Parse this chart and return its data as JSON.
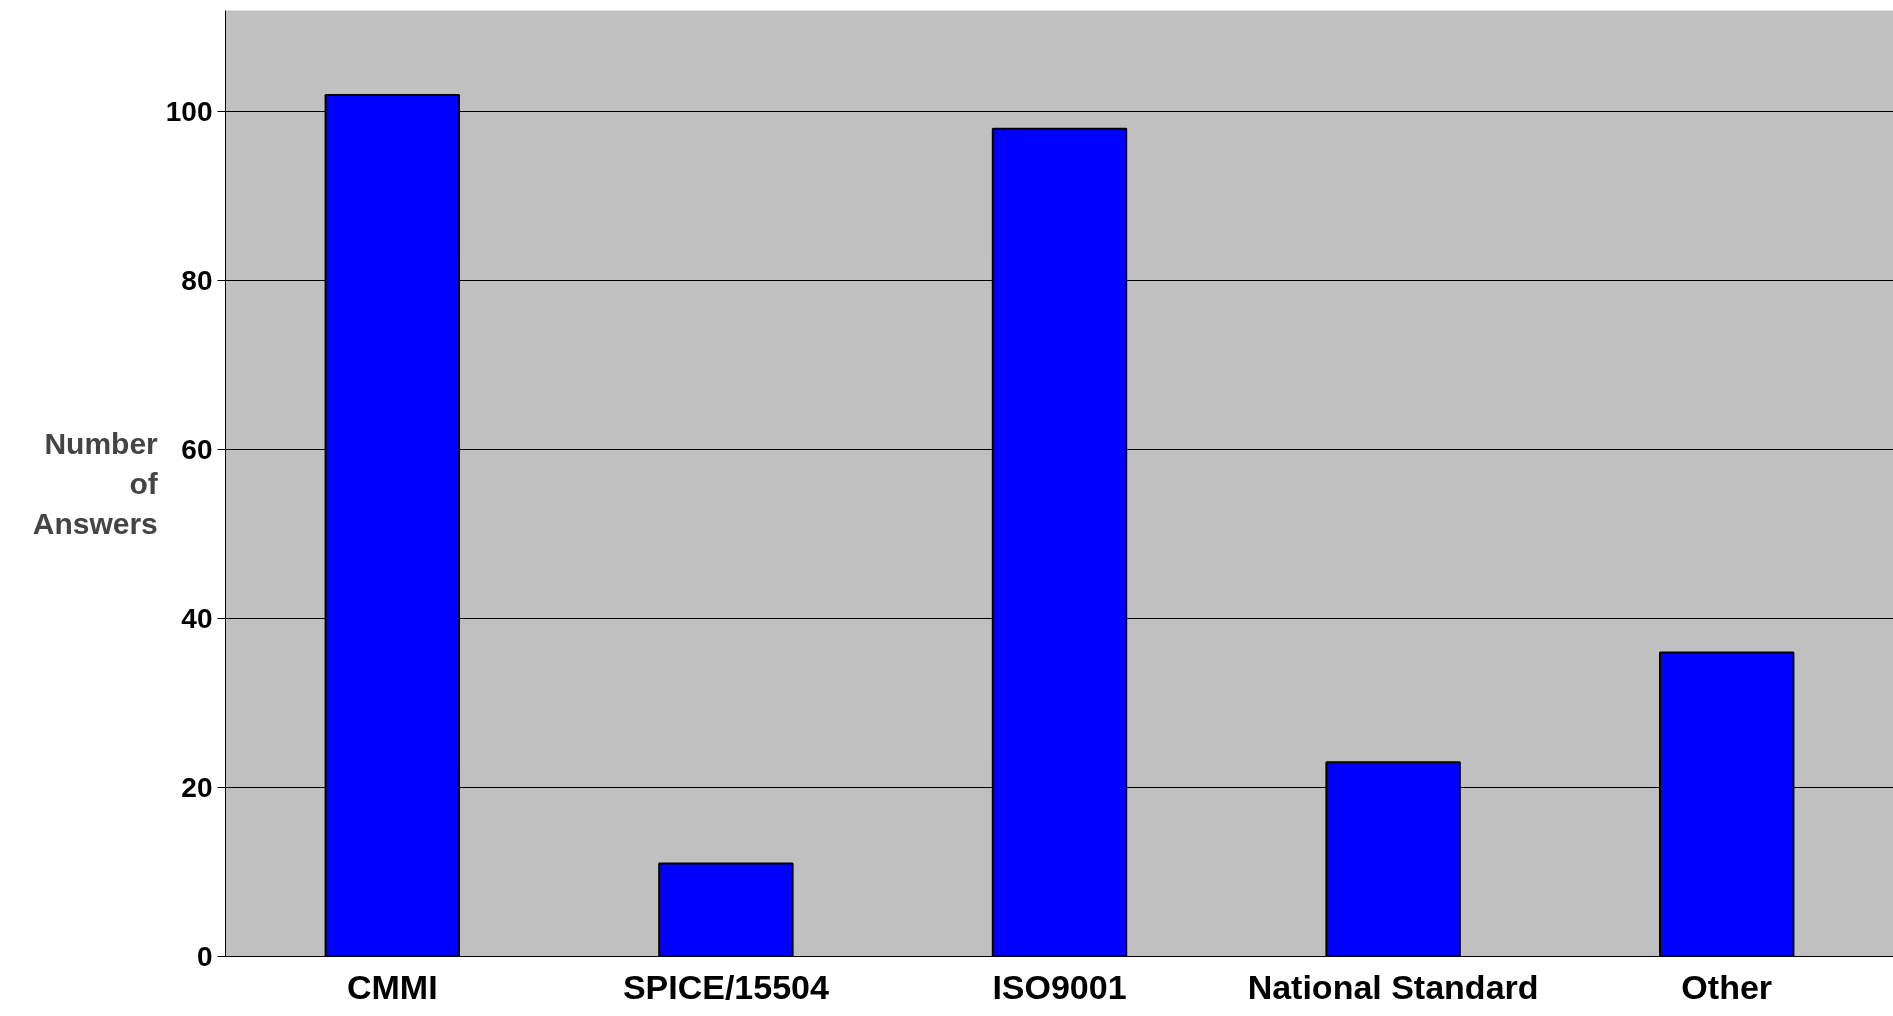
{
  "chart_data": {
    "type": "bar",
    "ylabel": "Number of Answers",
    "categories": [
      "CMMI",
      "SPICE/15504",
      "ISO9001",
      "National Standard",
      "Other"
    ],
    "values": [
      102,
      11,
      98,
      23,
      36
    ],
    "color": "#0000ff",
    "ylim": [
      0,
      112
    ],
    "yticks": [
      0,
      20,
      40,
      60,
      80,
      100
    ],
    "grid": "y"
  }
}
